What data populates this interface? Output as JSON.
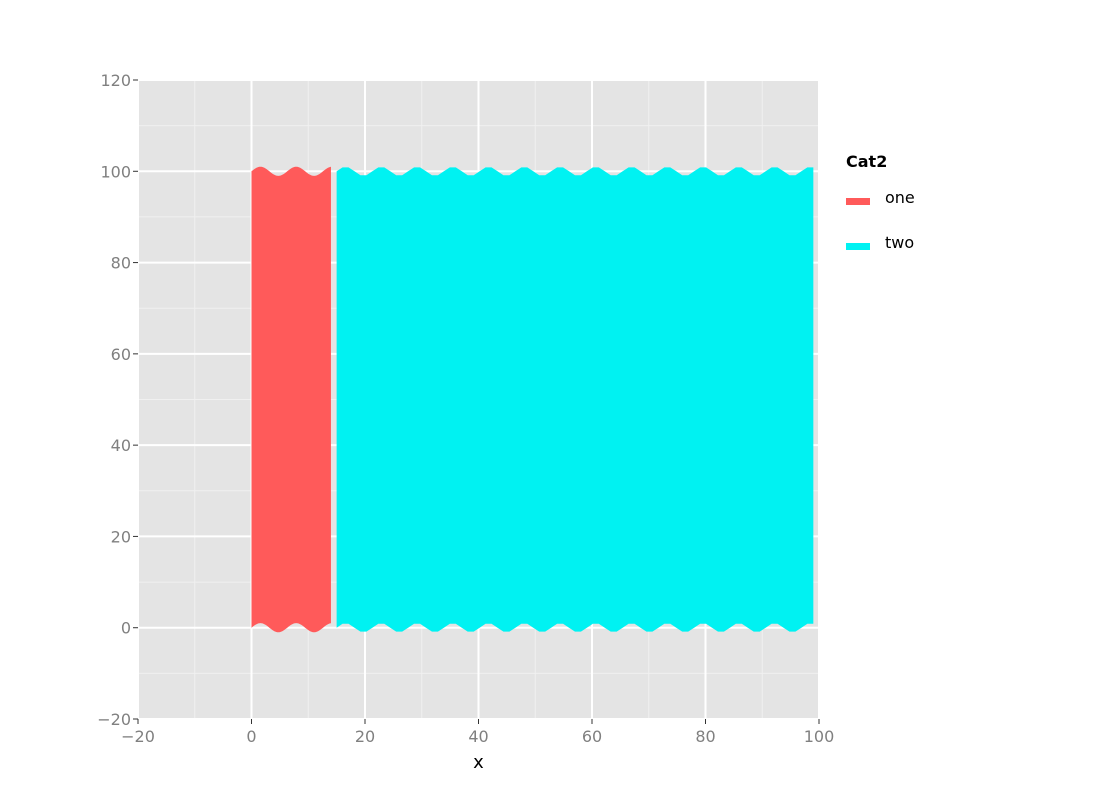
{
  "chart_data": {
    "type": "area",
    "xlabel": "x",
    "ylabel": "",
    "xlim": [
      -20,
      100
    ],
    "ylim": [
      -20,
      120
    ],
    "x_ticks": [
      -20,
      0,
      20,
      40,
      60,
      80,
      100
    ],
    "y_ticks": [
      -20,
      0,
      20,
      40,
      60,
      80,
      100,
      120
    ],
    "x_tick_labels": [
      "−20",
      "0",
      "20",
      "40",
      "60",
      "80",
      "100"
    ],
    "y_tick_labels": [
      "−20",
      "0",
      "20",
      "40",
      "60",
      "80",
      "100",
      "120"
    ],
    "grid": true,
    "wave_amplitude": 1,
    "wave_period": 6.3,
    "legend": {
      "title": "Cat2",
      "position": "right"
    },
    "series": [
      {
        "name": "one",
        "color": "#FF5A5A",
        "x_start": 0,
        "x_end": 14,
        "y_bottom": 0,
        "y_top": 100
      },
      {
        "name": "two",
        "color": "#00F2F2",
        "x_start": 15,
        "x_end": 99,
        "y_bottom": 0,
        "y_top": 100
      }
    ]
  }
}
